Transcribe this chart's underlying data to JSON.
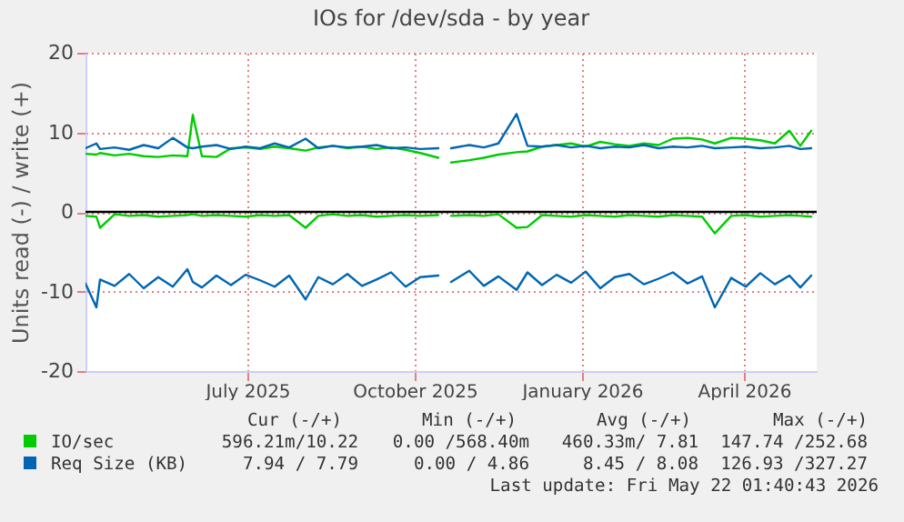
{
  "chart_data": {
    "type": "line",
    "title": "IOs for /dev/sda - by year",
    "ylabel": "Units read (-) / write (+)",
    "x": [
      "2025-04-18",
      "2025-04-24",
      "2025-04-26",
      "2025-05-04",
      "2025-05-12",
      "2025-05-20",
      "2025-05-28",
      "2025-06-05",
      "2025-06-13",
      "2025-06-16",
      "2025-06-21",
      "2025-06-29",
      "2025-07-07",
      "2025-07-15",
      "2025-07-23",
      "2025-07-31",
      "2025-08-08",
      "2025-08-17",
      "2025-08-24",
      "2025-09-01",
      "2025-09-09",
      "2025-09-17",
      "2025-09-25",
      "2025-10-03",
      "2025-10-11",
      "2025-10-19",
      "2025-10-29",
      "2025-11-02",
      "2025-11-05",
      "2025-11-15",
      "2025-11-23",
      "2025-12-01",
      "2025-12-11",
      "2025-12-17",
      "2025-12-25",
      "2026-01-02",
      "2026-01-10",
      "2026-01-18",
      "2026-01-26",
      "2026-02-03",
      "2026-02-11",
      "2026-02-19",
      "2026-02-27",
      "2026-03-07",
      "2026-03-15",
      "2026-03-23",
      "2026-03-30",
      "2026-04-08",
      "2026-04-16",
      "2026-04-24",
      "2026-05-02",
      "2026-05-10",
      "2026-05-16",
      "2026-05-22"
    ],
    "series": [
      {
        "name": "IO/sec",
        "color": "#00cc00",
        "values": [
          7.3,
          7.2,
          7.4,
          7.1,
          7.3,
          7.0,
          6.9,
          7.1,
          7.0,
          12.2,
          7.0,
          6.9,
          8.0,
          8.1,
          7.9,
          8.2,
          8.0,
          7.7,
          8.1,
          8.3,
          8.0,
          8.2,
          7.9,
          8.1,
          7.8,
          7.4,
          6.8,
          null,
          6.2,
          6.5,
          6.8,
          7.2,
          7.5,
          7.6,
          8.2,
          8.4,
          8.6,
          8.2,
          8.8,
          8.5,
          8.3,
          8.6,
          8.4,
          9.2,
          9.3,
          9.1,
          8.6,
          9.3,
          9.2,
          9.0,
          8.6,
          10.2,
          8.3,
          10.2
        ]
      },
      {
        "color": "#00cc00",
        "values": [
          -0.5,
          -0.6,
          -2.0,
          -0.3,
          -0.5,
          -0.4,
          -0.6,
          -0.5,
          -0.4,
          -0.3,
          -0.5,
          -0.4,
          -0.5,
          -0.6,
          -0.4,
          -0.5,
          -0.4,
          -2.0,
          -0.5,
          -0.3,
          -0.5,
          -0.4,
          -0.6,
          -0.5,
          -0.4,
          -0.5,
          -0.4,
          null,
          -0.5,
          -0.4,
          -0.5,
          -0.3,
          -2.0,
          -1.9,
          -0.4,
          -0.5,
          -0.6,
          -0.4,
          -0.5,
          -0.6,
          -0.4,
          -0.5,
          -0.6,
          -0.4,
          -0.5,
          -0.6,
          -2.7,
          -0.5,
          -0.4,
          -0.6,
          -0.5,
          -0.4,
          -0.5,
          -0.6
        ]
      },
      {
        "name": "Req Size (KB)",
        "color": "#0066b3",
        "values": [
          8.0,
          8.6,
          7.9,
          8.1,
          7.8,
          8.4,
          8.0,
          9.3,
          8.1,
          8.0,
          8.2,
          8.4,
          7.9,
          8.2,
          8.0,
          8.6,
          8.1,
          9.2,
          8.0,
          8.3,
          8.1,
          8.2,
          8.4,
          8.0,
          8.1,
          7.9,
          8.0,
          null,
          8.0,
          8.4,
          8.1,
          8.6,
          12.3,
          8.3,
          8.2,
          8.4,
          8.1,
          8.3,
          8.0,
          8.2,
          8.1,
          8.4,
          8.0,
          8.2,
          8.1,
          8.3,
          8.0,
          8.1,
          8.2,
          8.0,
          8.1,
          8.3,
          7.9,
          8.0
        ]
      },
      {
        "color": "#0066b3",
        "values": [
          -9.0,
          -12.0,
          -8.5,
          -9.3,
          -7.8,
          -9.6,
          -8.2,
          -9.4,
          -7.2,
          -8.8,
          -9.5,
          -8.0,
          -9.2,
          -7.9,
          -8.6,
          -9.4,
          -8.0,
          -11.0,
          -8.2,
          -9.1,
          -7.8,
          -9.3,
          -8.5,
          -7.6,
          -9.4,
          -8.2,
          -8.0,
          null,
          -8.8,
          -7.4,
          -9.3,
          -8.1,
          -9.8,
          -7.6,
          -9.2,
          -7.9,
          -8.9,
          -7.5,
          -9.6,
          -8.2,
          -7.8,
          -9.1,
          -8.4,
          -7.6,
          -9.0,
          -8.1,
          -12.0,
          -8.3,
          -9.4,
          -7.7,
          -9.1,
          -8.0,
          -9.5,
          -8.0
        ]
      }
    ],
    "xlim": [
      "2025-04-18",
      "2026-05-25"
    ],
    "xticks": [
      {
        "value": "2025-07-16",
        "label": "July 2025"
      },
      {
        "value": "2025-10-16",
        "label": "October 2025"
      },
      {
        "value": "2026-01-16",
        "label": "January 2026"
      },
      {
        "value": "2026-04-15",
        "label": "April 2026"
      }
    ],
    "ylim": [
      -20,
      20
    ],
    "yticks": [
      -20,
      -10,
      0,
      10,
      20
    ],
    "grid": true,
    "legend": "bottom",
    "ref_lines": [
      {
        "axis": "y",
        "value": 0,
        "color": "#000000"
      }
    ],
    "annotations": [
      "Cur (-/+)",
      "Min (-/+)",
      "Avg (-/+)",
      "Max (-/+)",
      "596.21m/10.22",
      "0.00 /568.40m",
      "460.33m/ 7.81",
      "147.74 /252.68",
      "7.94 / 7.79",
      "0.00 / 4.86",
      "8.45 / 8.08",
      "126.93 /327.27",
      "Last update: Fri May 22 01:40:43 2026"
    ]
  }
}
